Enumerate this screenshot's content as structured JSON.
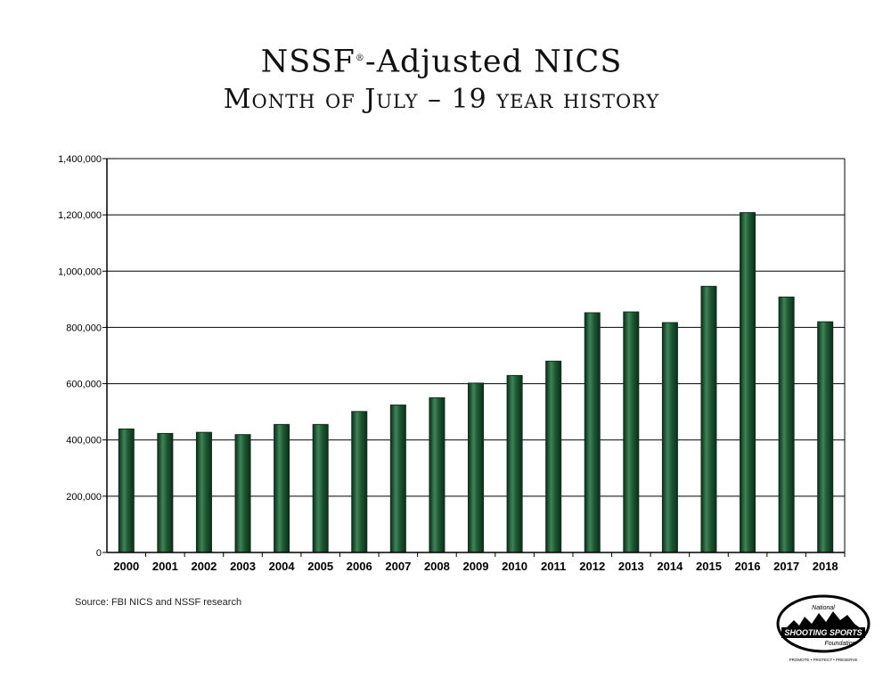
{
  "title": {
    "line1_main": "NSSF",
    "line1_reg": "®",
    "line1_rest": "-Adjusted NICS",
    "line2": "Month of July – 19 year history"
  },
  "source": "Source: FBI NICS and NSSF research",
  "logo": {
    "top": "National",
    "middle": "SHOOTING SPORTS",
    "bottom": "Foundation",
    "tagline": "PROMOTE • PROTECT • PRESERVE"
  },
  "colors": {
    "bar": "#1e5a33",
    "bar_dark": "#0d2e18",
    "bar_light": "#3f8458",
    "grid": "#000000"
  },
  "chart_data": {
    "type": "bar",
    "categories": [
      "2000",
      "2001",
      "2002",
      "2003",
      "2004",
      "2005",
      "2006",
      "2007",
      "2008",
      "2009",
      "2010",
      "2011",
      "2012",
      "2013",
      "2014",
      "2015",
      "2016",
      "2017",
      "2018"
    ],
    "values": [
      439000,
      423000,
      427000,
      419000,
      455000,
      455000,
      501000,
      524000,
      550000,
      602000,
      629000,
      680000,
      852000,
      855000,
      817000,
      946000,
      1208000,
      908000,
      820000
    ],
    "ylim": [
      0,
      1400000
    ],
    "yticks": [
      0,
      200000,
      400000,
      600000,
      800000,
      1000000,
      1200000,
      1400000
    ],
    "ytick_labels": [
      "0",
      "200,000",
      "400,000",
      "600,000",
      "800,000",
      "1,000,000",
      "1,200,000",
      "1,400,000"
    ],
    "grid": true,
    "legend": "none"
  }
}
